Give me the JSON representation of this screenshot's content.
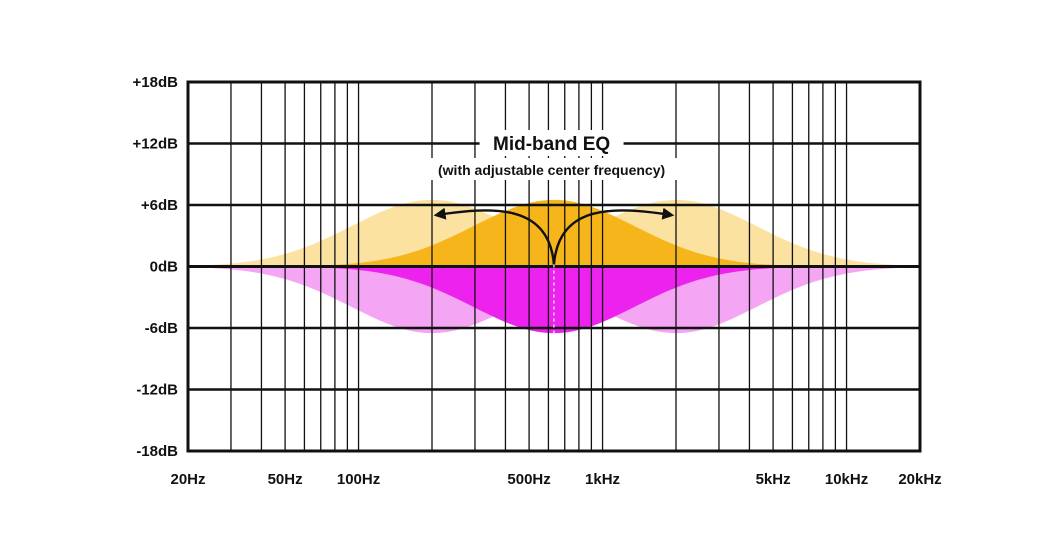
{
  "chart_data": {
    "type": "area",
    "title": "Mid-band EQ",
    "subtitle": "(with adjustable center frequency)",
    "x_scale": "log",
    "xlim": [
      20,
      20000
    ],
    "ylim": [
      -18,
      18
    ],
    "x_tick_values": [
      20,
      50,
      100,
      500,
      1000,
      5000,
      10000,
      20000
    ],
    "x_tick_labels": [
      "20Hz",
      "50Hz",
      "100Hz",
      "500Hz",
      "1kHz",
      "5kHz",
      "10kHz",
      "20kHz"
    ],
    "y_tick_values": [
      18,
      12,
      6,
      0,
      -6,
      -12,
      -18
    ],
    "y_tick_labels": [
      "+18dB",
      "+12dB",
      "+6dB",
      "0dB",
      "-6dB",
      "-12dB",
      "-18dB"
    ],
    "grid": true,
    "center_frequency_hz": 632,
    "gain_db": 6.5,
    "arrows": "left and right from center frequency",
    "colors": {
      "boost_main": "#f7b51c",
      "boost_shifted": "#fbe2a0",
      "cut_main": "#ee22ee",
      "cut_shifted": "#f4a6f4",
      "grid": "#111111"
    },
    "series": [
      {
        "center_hz": 200,
        "gain_db": 6.5,
        "color": "#fbe2a0"
      },
      {
        "center_hz": 2000,
        "gain_db": 6.5,
        "color": "#fbe2a0"
      },
      {
        "center_hz": 632,
        "gain_db": 6.5,
        "color": "#f7b51c"
      },
      {
        "center_hz": 200,
        "gain_db": -6.5,
        "color": "#f4a6f4"
      },
      {
        "center_hz": 2000,
        "gain_db": -6.5,
        "color": "#f4a6f4"
      },
      {
        "center_hz": 632,
        "gain_db": -6.5,
        "color": "#ee22ee"
      }
    ]
  }
}
